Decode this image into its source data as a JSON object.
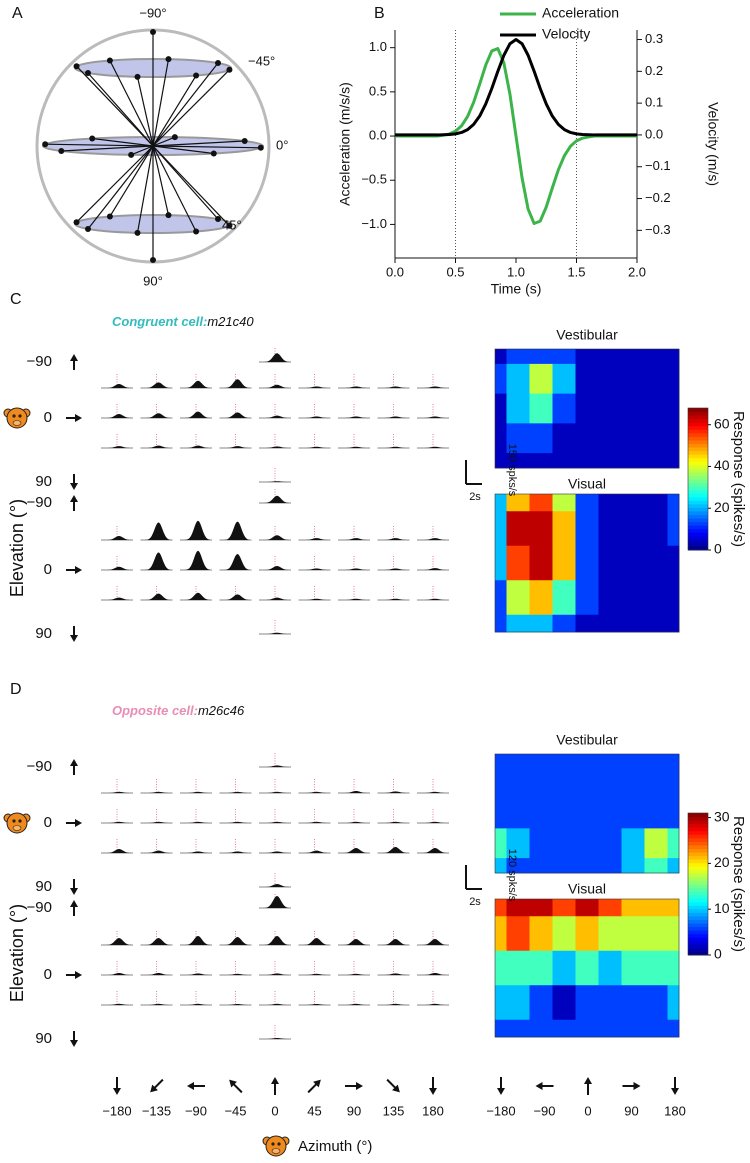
{
  "panel_labels": [
    "A",
    "B"
  ],
  "sphere_labels": [
    "−90°",
    "−45°",
    "0°",
    "45°",
    "90°"
  ],
  "elevation_labels": [
    {
      "value": -90,
      "label": "−90"
    },
    0,
    90
  ],
  "elevation_title": "Elevation (°)",
  "psth_azimuths": [
    {
      "value": -180,
      "label": "−180"
    },
    {
      "value": -135,
      "label": "−135"
    },
    {
      "value": -90,
      "label": "−90"
    },
    {
      "value": -45,
      "label": "−45"
    },
    0,
    45,
    90,
    135,
    180
  ],
  "map_xlim": [
    -180,
    180
  ],
  "map_azimuths": [
    {
      "value": -180,
      "label": "−180"
    },
    {
      "value": -90,
      "label": "−90"
    },
    0,
    90,
    180
  ],
  "azimuth_title": "Azimuth (°)",
  "chart_data": [
    {
      "type": "line",
      "x": [
        0,
        0.05,
        0.1,
        0.15,
        0.2,
        0.25,
        0.3,
        0.35,
        0.4,
        0.45,
        0.5,
        0.55,
        0.6,
        0.65,
        0.7,
        0.75,
        0.8,
        0.85,
        0.9,
        0.95,
        1.0,
        1.05,
        1.1,
        1.15,
        1.2,
        1.25,
        1.3,
        1.35,
        1.4,
        1.45,
        1.5,
        1.55,
        1.6,
        1.65,
        1.7,
        1.75,
        1.8,
        1.85,
        1.9,
        1.95,
        2.0
      ],
      "series": [
        {
          "name": "Acceleration",
          "color": "#3cb44a",
          "values": [
            0,
            0,
            0,
            0,
            0,
            0,
            0,
            0,
            0.01,
            0.024,
            0.054,
            0.116,
            0.222,
            0.382,
            0.588,
            0.803,
            0.963,
            0.99,
            0.826,
            0.473,
            0,
            -0.473,
            -0.826,
            -0.99,
            -0.963,
            -0.803,
            -0.588,
            -0.382,
            -0.222,
            -0.116,
            -0.054,
            -0.024,
            -0.01,
            0,
            0,
            0,
            0,
            0,
            0,
            0,
            0
          ]
        },
        {
          "name": "Velocity",
          "color": "#000000",
          "axis": "y2",
          "values": [
            0,
            0,
            0,
            0,
            0,
            0,
            0,
            0,
            0.0005,
            0.0013,
            0.0033,
            0.0078,
            0.0168,
            0.0331,
            0.0594,
            0.0974,
            0.146,
            0.2001,
            0.2506,
            0.2868,
            0.3,
            0.2868,
            0.2506,
            0.2001,
            0.146,
            0.0974,
            0.0594,
            0.0331,
            0.0168,
            0.0078,
            0.0033,
            0.0013,
            0.0005,
            0,
            0,
            0,
            0,
            0,
            0,
            0,
            0
          ]
        }
      ],
      "xlim": [
        0,
        2
      ],
      "xticks": [
        {
          "value": 0,
          "label": "0.0"
        },
        0.5,
        {
          "value": 1,
          "label": "1.0"
        },
        1.5,
        {
          "value": 2,
          "label": "2.0"
        }
      ],
      "ylim": [
        -1.38,
        1.2
      ],
      "yticks": [
        {
          "value": -1,
          "label": "−1.0"
        },
        {
          "value": -0.5,
          "label": "−0.5"
        },
        {
          "value": 0,
          "label": "0.0"
        },
        0.5,
        {
          "value": 1,
          "label": "1.0"
        }
      ],
      "y2lim": [
        -0.387,
        0.33
      ],
      "y2ticks": [
        {
          "value": -0.3,
          "label": "−0.3"
        },
        {
          "value": -0.2,
          "label": "−0.2"
        },
        {
          "value": -0.1,
          "label": "−0.1"
        },
        {
          "value": 0,
          "label": "0.0"
        },
        0.1,
        0.2,
        0.3
      ],
      "xlabel": "Time (s)",
      "ylabel": "Acceleration (m/s/s)",
      "y2label": "Velocity (m/s)",
      "vlines": [
        0.5,
        1.5
      ]
    },
    {
      "type": "tuning",
      "label": "C",
      "cell_type": "Congruent cell:",
      "cell_id": "m21c40",
      "cell_color": "#33bcbc",
      "psth_scale": {
        "value": 150,
        "label": "150 spks/s"
      },
      "time_scale": {
        "value": 2,
        "label": "2s"
      },
      "zlim": [
        0,
        68
      ],
      "zticks": [
        0,
        20,
        40,
        60
      ],
      "zlabel": "Response (spikes/s)",
      "conditions": [
        {
          "name": "Vestibular",
          "psth_top": 55,
          "psth_rows": [
            [
              25,
              35,
              45,
              55,
              20,
              10,
              10,
              10,
              10
            ],
            [
              25,
              30,
              40,
              35,
              15,
              10,
              10,
              10,
              10
            ],
            [
              12,
              15,
              15,
              12,
              10,
              8,
              8,
              8,
              8
            ]
          ],
          "psth_bottom": 5,
          "map": [
            [
              5,
              10,
              15,
              10,
              5,
              5,
              5,
              5,
              5
            ],
            [
              10,
              25,
              35,
              20,
              5,
              5,
              5,
              5,
              5
            ],
            [
              8,
              22,
              28,
              15,
              5,
              5,
              5,
              3,
              5
            ],
            [
              5,
              10,
              15,
              8,
              5,
              5,
              5,
              5,
              5
            ],
            [
              5,
              5,
              5,
              5,
              5,
              5,
              5,
              5,
              5
            ]
          ]
        },
        {
          "name": "Visual",
          "psth_top": 45,
          "psth_rows": [
            [
              25,
              110,
              120,
              115,
              30,
              12,
              12,
              12,
              12
            ],
            [
              20,
              110,
              120,
              100,
              25,
              10,
              10,
              10,
              12
            ],
            [
              15,
              40,
              45,
              35,
              15,
              8,
              8,
              8,
              8
            ]
          ],
          "psth_bottom": 8,
          "map": [
            [
              20,
              45,
              55,
              40,
              15,
              5,
              5,
              5,
              10
            ],
            [
              25,
              60,
              65,
              50,
              15,
              5,
              5,
              5,
              10
            ],
            [
              20,
              55,
              60,
              45,
              10,
              5,
              5,
              8,
              5
            ],
            [
              15,
              40,
              45,
              30,
              10,
              5,
              5,
              5,
              5
            ],
            [
              10,
              20,
              25,
              15,
              5,
              5,
              5,
              5,
              5
            ]
          ]
        }
      ]
    },
    {
      "type": "tuning",
      "label": "D",
      "cell_type": "Opposite cell:",
      "cell_id": "m26c46",
      "cell_color": "#e88db3",
      "psth_scale": {
        "value": 120,
        "label": "120 spks/s"
      },
      "time_scale": {
        "value": 2,
        "label": "2s"
      },
      "zlim": [
        0,
        31
      ],
      "zticks": [
        0,
        10,
        20,
        30
      ],
      "zlabel": "Response (spikes/s)",
      "conditions": [
        {
          "name": "Vestibular",
          "psth_top": 8,
          "psth_rows": [
            [
              6,
              6,
              6,
              6,
              6,
              6,
              10,
              8,
              6
            ],
            [
              6,
              6,
              6,
              6,
              6,
              6,
              6,
              6,
              6
            ],
            [
              20,
              12,
              8,
              8,
              8,
              12,
              25,
              30,
              25
            ]
          ],
          "psth_bottom": 15,
          "map": [
            [
              5,
              5,
              5,
              5,
              5,
              5,
              7,
              5,
              5
            ],
            [
              5,
              5,
              5,
              5,
              5,
              5,
              5,
              5,
              5
            ],
            [
              5,
              4,
              4,
              4,
              4,
              4,
              5,
              6,
              6
            ],
            [
              12,
              8,
              5,
              5,
              5,
              6,
              10,
              18,
              12
            ],
            [
              8,
              6,
              5,
              5,
              5,
              5,
              8,
              12,
              10
            ]
          ]
        },
        {
          "name": "Visual",
          "psth_top": 60,
          "psth_rows": [
            [
              35,
              35,
              45,
              40,
              45,
              35,
              30,
              30,
              30
            ],
            [
              10,
              10,
              8,
              6,
              8,
              6,
              6,
              8,
              10
            ],
            [
              6,
              6,
              6,
              5,
              6,
              5,
              6,
              6,
              6
            ]
          ],
          "psth_bottom": 5,
          "map": [
            [
              26,
              28,
              28,
              27,
              28,
              24,
              22,
              22,
              22
            ],
            [
              22,
              24,
              22,
              18,
              20,
              18,
              18,
              17,
              18
            ],
            [
              15,
              15,
              12,
              8,
              12,
              10,
              12,
              12,
              14
            ],
            [
              8,
              8,
              6,
              3,
              6,
              5,
              6,
              7,
              8
            ],
            [
              4,
              4,
              4,
              4,
              4,
              4,
              4,
              4,
              4
            ]
          ]
        }
      ]
    }
  ]
}
